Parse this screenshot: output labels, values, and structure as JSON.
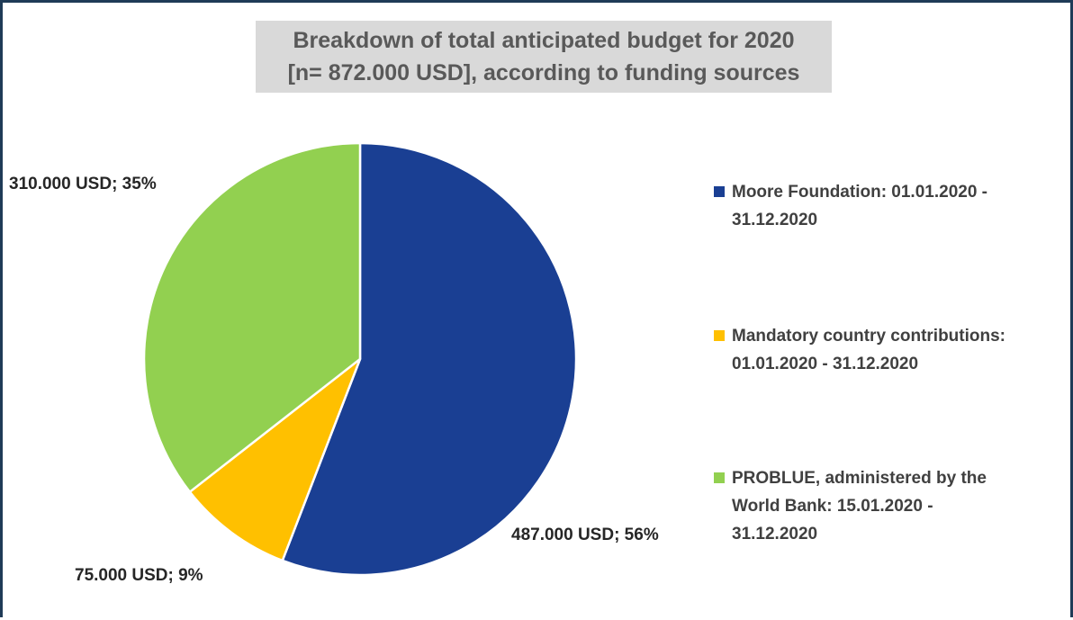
{
  "chart_data": {
    "type": "pie",
    "title_lines": [
      "Breakdown of total anticipated budget for 2020",
      "[n= 872.000 USD], according to funding sources"
    ],
    "slices": [
      {
        "name": "Moore Foundation: 01.01.2020 - 31.12.2020",
        "legend_lines": [
          "Moore Foundation: 01.01.2020 -",
          "31.12.2020"
        ],
        "value": 487000,
        "percent": 56,
        "label": "487.000 USD; 56%",
        "color": "#1a3f93"
      },
      {
        "name": "Mandatory country contributions: 01.01.2020 - 31.12.2020",
        "legend_lines": [
          "Mandatory country contributions:",
          "01.01.2020 - 31.12.2020"
        ],
        "value": 75000,
        "percent": 9,
        "label": "75.000 USD; 9%",
        "color": "#ffc000"
      },
      {
        "name": "PROBLUE, administered by the World Bank: 15.01.2020 - 31.12.2020",
        "legend_lines": [
          "PROBLUE, administered by the",
          "World Bank: 15.01.2020 -",
          "31.12.2020"
        ],
        "value": 310000,
        "percent": 35,
        "label": "310.000 USD; 35%",
        "color": "#92d050"
      }
    ],
    "legend_position": "right",
    "start_angle": "12 o'clock",
    "direction": "clockwise"
  }
}
